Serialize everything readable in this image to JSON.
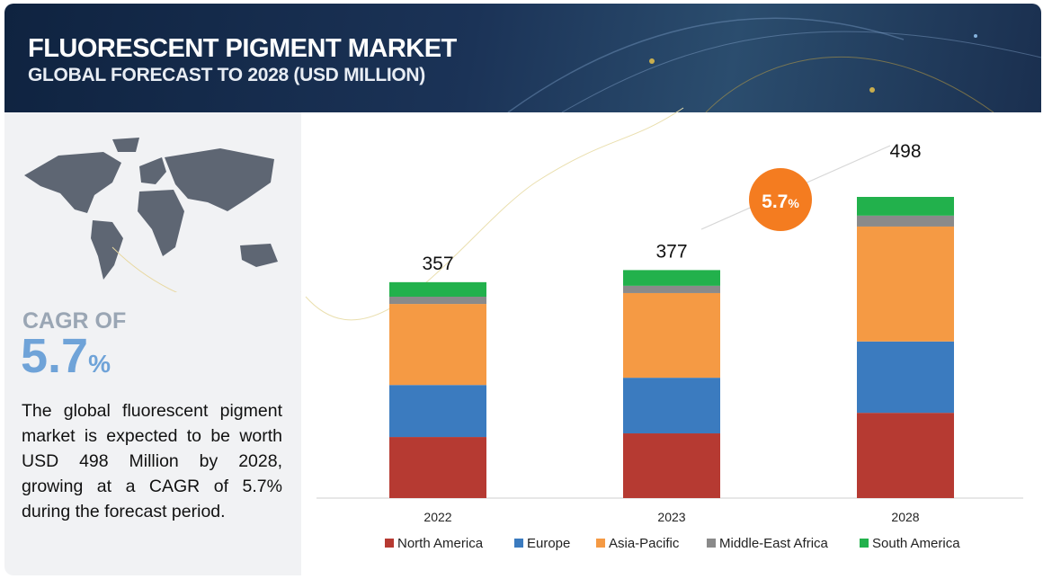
{
  "header": {
    "title": "FLUORESCENT PIGMENT MARKET",
    "subtitle": "GLOBAL FORECAST TO 2028 (USD MILLION)"
  },
  "sidebar": {
    "cagr_label": "CAGR OF",
    "cagr_number": "5.7",
    "cagr_unit": "%",
    "description": "The global fluorescent pigment market is expected to be worth USD 498 Million by 2028, growing at a CAGR of 5.7% during the forecast period."
  },
  "chart_data": {
    "type": "bar",
    "stacked": true,
    "categories": [
      "2022",
      "2023",
      "2028"
    ],
    "totals": [
      357,
      377,
      498
    ],
    "badge": {
      "number": "5.7",
      "unit": "%",
      "color": "#f47c20"
    },
    "series": [
      {
        "name": "North America",
        "color": "#b63a32",
        "values": [
          101,
          107,
          141
        ]
      },
      {
        "name": "Europe",
        "color": "#3b7bbf",
        "values": [
          86,
          92,
          118
        ]
      },
      {
        "name": "Asia-Pacific",
        "color": "#f59a44",
        "values": [
          134,
          140,
          190
        ]
      },
      {
        "name": "Middle-East Africa",
        "color": "#8a8a8a",
        "values": [
          12,
          12,
          18
        ]
      },
      {
        "name": "South America",
        "color": "#22b14c",
        "values": [
          24,
          26,
          31
        ]
      }
    ]
  }
}
